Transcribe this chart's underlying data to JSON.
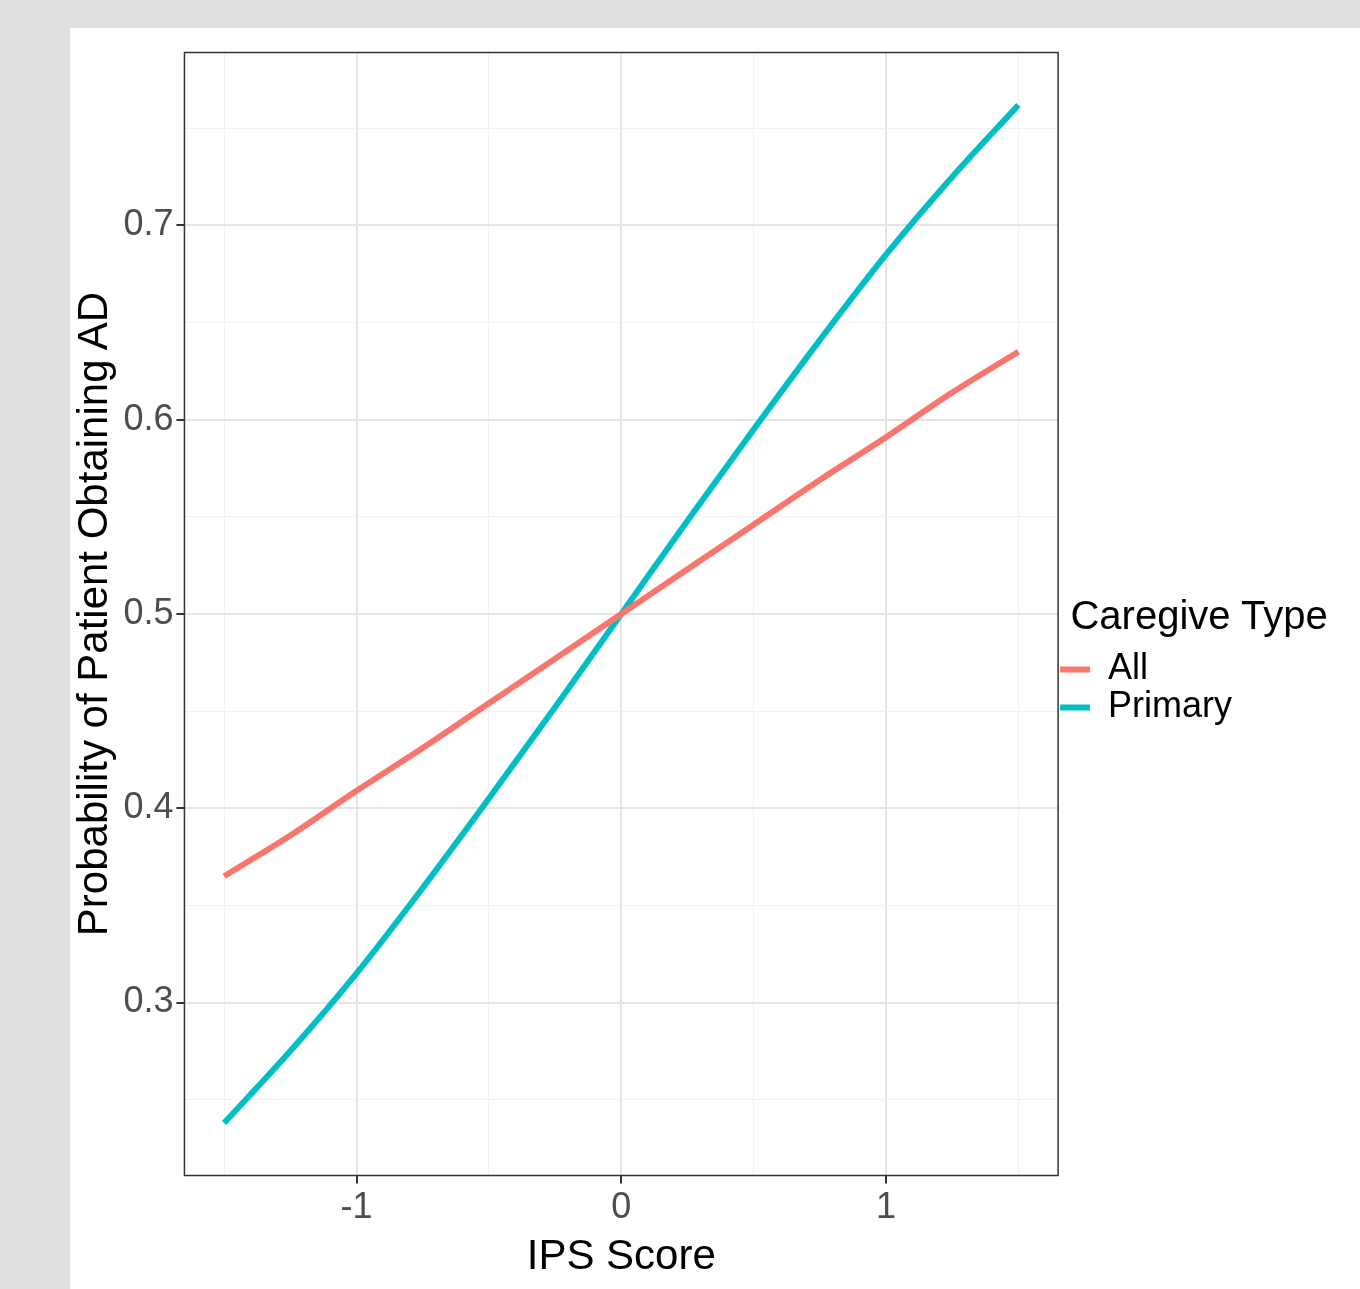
{
  "chart_data": {
    "type": "line",
    "xlabel": "IPS Score",
    "ylabel": "Probability of Patient Obtaining AD",
    "legend_title": "Caregive Type",
    "legend": "right",
    "grid": true,
    "marker": "none",
    "line_style": "solid",
    "x": [
      -1.5,
      -1.25,
      -1,
      -0.75,
      -0.5,
      -0.25,
      0,
      0.25,
      0.5,
      0.75,
      1,
      1.25,
      1.5
    ],
    "xlim": [
      -1.65,
      1.65
    ],
    "xticks": [
      {
        "value": -1.5,
        "label": null
      },
      -1,
      {
        "value": -0.5,
        "label": null
      },
      0,
      {
        "value": 0.5,
        "label": null
      },
      1,
      {
        "value": 1.5,
        "label": null
      }
    ],
    "ylim": [
      0.211,
      0.789
    ],
    "yticks": [
      {
        "value": 0.25,
        "label": null
      },
      0.3,
      {
        "value": 0.35,
        "label": null
      },
      0.4,
      {
        "value": 0.45,
        "label": null
      },
      0.5,
      {
        "value": 0.55,
        "label": null
      },
      0.6,
      {
        "value": 0.65,
        "label": null
      },
      0.7,
      {
        "value": 0.75,
        "label": null
      }
    ],
    "series": [
      {
        "name": "All",
        "color": "#f8766d",
        "values": [
          0.365,
          0.386,
          0.409,
          0.431,
          0.454,
          0.477,
          0.5,
          0.523,
          0.546,
          0.569,
          0.591,
          0.614,
          0.635
        ]
      },
      {
        "name": "Primary",
        "color": "#00bfc4",
        "values": [
          0.238,
          0.275,
          0.315,
          0.359,
          0.405,
          0.452,
          0.5,
          0.548,
          0.595,
          0.641,
          0.685,
          0.725,
          0.762
        ]
      }
    ]
  }
}
